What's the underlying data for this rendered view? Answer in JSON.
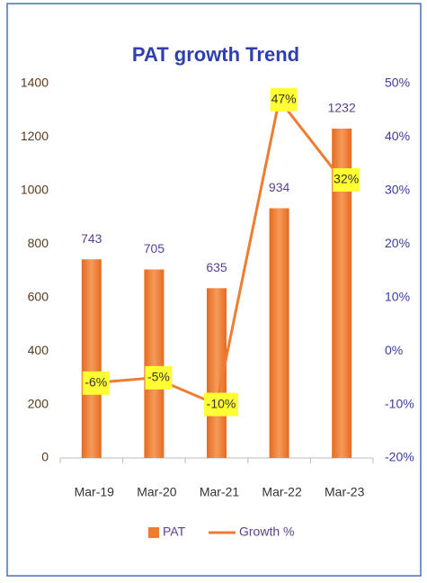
{
  "chart_data": {
    "type": "bar",
    "title": "PAT growth Trend",
    "categories": [
      "Mar-19",
      "Mar-20",
      "Mar-21",
      "Mar-22",
      "Mar-23"
    ],
    "series": [
      {
        "name": "PAT",
        "type": "bar",
        "color": "#ed7d31",
        "values": [
          743,
          705,
          635,
          934,
          1232
        ]
      },
      {
        "name": "Growth %",
        "type": "line",
        "axis": "y2",
        "color": "#ed7d31",
        "values": [
          -6,
          -5,
          -10,
          47,
          32
        ],
        "value_labels": [
          "-6%",
          "-5%",
          "-10%",
          "47%",
          "32%"
        ]
      }
    ],
    "ylim": [
      0,
      1400
    ],
    "yticks": [
      0,
      200,
      400,
      600,
      800,
      1000,
      1200,
      1400
    ],
    "y2lim": [
      -20,
      50
    ],
    "y2ticks": [
      {
        "value": -20,
        "label": "-20%"
      },
      {
        "value": -10,
        "label": "-10%"
      },
      {
        "value": 0,
        "label": "0%"
      },
      {
        "value": 10,
        "label": "10%"
      },
      {
        "value": 20,
        "label": "20%"
      },
      {
        "value": 30,
        "label": "30%"
      },
      {
        "value": 40,
        "label": "40%"
      },
      {
        "value": 50,
        "label": "50%"
      }
    ],
    "legend": "bottom"
  }
}
